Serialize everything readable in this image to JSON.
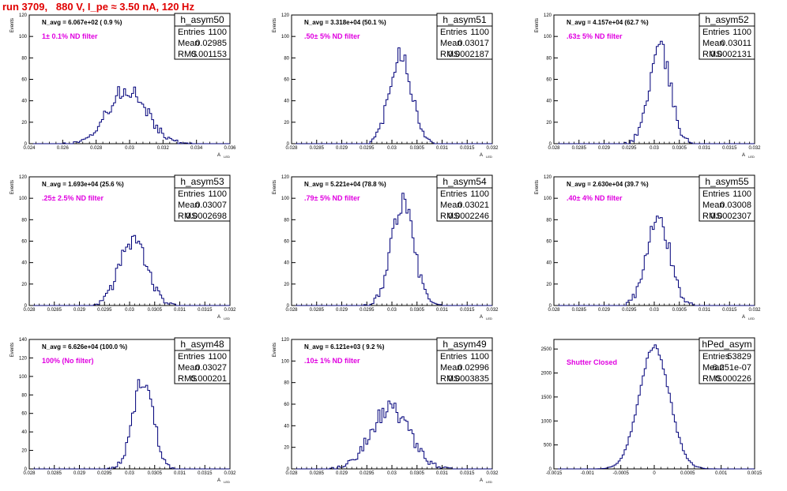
{
  "page": {
    "title": "run 3709,   880 V, I_pe ≈ 3.50 nA, 120 Hz"
  },
  "chart_data": [
    {
      "type": "bar",
      "name": "h_asym50",
      "navg_label": "N_avg = 6.067e+02 ( 0.9 %)",
      "filter_label": "1± 0.1% ND filter",
      "stats": {
        "entries_label": "Entries",
        "entries": "1100",
        "mean_label": "Mean",
        "mean": "0.02985",
        "rms_label": "RMS",
        "rms": "0.001153"
      },
      "ylabel": "Events",
      "xlabel": "A",
      "xlabel_sub": "LED",
      "xlim": [
        0.024,
        0.036
      ],
      "ylim": [
        0,
        120
      ],
      "xticks": [
        0.024,
        0.026,
        0.028,
        0.03,
        0.032,
        0.034,
        0.036
      ],
      "xtick_labels": [
        "0.024",
        "0.026",
        "0.028",
        "0.03",
        "0.032",
        "0.034",
        "0.036"
      ],
      "yticks": [
        0,
        20,
        40,
        60,
        80,
        100,
        120
      ],
      "ytick_labels": [
        "0",
        "20",
        "40",
        "60",
        "80",
        "100",
        "120"
      ],
      "dist": {
        "mean": 0.02985,
        "sigma": 0.001153,
        "peak": 52
      }
    },
    {
      "type": "bar",
      "name": "h_asym51",
      "navg_label": "N_avg = 3.318e+04 (50.1 %)",
      "filter_label": ".50± 5% ND filter",
      "stats": {
        "entries_label": "Entries",
        "entries": "1100",
        "mean_label": "Mean",
        "mean": "0.03017",
        "rms_label": "RMS",
        "rms": "0.0002187"
      },
      "ylabel": "Events",
      "xlabel": "A",
      "xlabel_sub": "LED",
      "xlim": [
        0.028,
        0.032
      ],
      "ylim": [
        0,
        120
      ],
      "xticks": [
        0.028,
        0.0285,
        0.029,
        0.0295,
        0.03,
        0.0305,
        0.031,
        0.0315,
        0.032
      ],
      "xtick_labels": [
        "0.028",
        "0.0285",
        "0.029",
        "0.0295",
        "0.03",
        "0.0305",
        "0.031",
        "0.0315",
        "0.032"
      ],
      "yticks": [
        0,
        20,
        40,
        60,
        80,
        100,
        120
      ],
      "ytick_labels": [
        "0",
        "20",
        "40",
        "60",
        "80",
        "100",
        "120"
      ],
      "dist": {
        "mean": 0.03017,
        "sigma": 0.0002187,
        "peak": 86
      }
    },
    {
      "type": "bar",
      "name": "h_asym52",
      "navg_label": "N_avg = 4.157e+04 (62.7 %)",
      "filter_label": ".63± 5% ND filter",
      "stats": {
        "entries_label": "Entries",
        "entries": "1100",
        "mean_label": "Mean",
        "mean": "0.03011",
        "rms_label": "RMS",
        "rms": "0.0002131"
      },
      "ylabel": "Events",
      "xlabel": "A",
      "xlabel_sub": "LED",
      "xlim": [
        0.028,
        0.032
      ],
      "ylim": [
        0,
        120
      ],
      "xticks": [
        0.028,
        0.0285,
        0.029,
        0.0295,
        0.03,
        0.0305,
        0.031,
        0.0315,
        0.032
      ],
      "xtick_labels": [
        "0.028",
        "0.0285",
        "0.029",
        "0.0295",
        "0.03",
        "0.0305",
        "0.031",
        "0.0315",
        "0.032"
      ],
      "yticks": [
        0,
        20,
        40,
        60,
        80,
        100,
        120
      ],
      "ytick_labels": [
        "0",
        "20",
        "40",
        "60",
        "80",
        "100",
        "120"
      ],
      "dist": {
        "mean": 0.03011,
        "sigma": 0.0002131,
        "peak": 88
      }
    },
    {
      "type": "bar",
      "name": "h_asym53",
      "navg_label": "N_avg = 1.693e+04 (25.6 %)",
      "filter_label": ".25± 2.5% ND filter",
      "stats": {
        "entries_label": "Entries",
        "entries": "1100",
        "mean_label": "Mean",
        "mean": "0.03007",
        "rms_label": "RMS",
        "rms": "0.0002698"
      },
      "ylabel": "Events",
      "xlabel": "A",
      "xlabel_sub": "LED",
      "xlim": [
        0.028,
        0.032
      ],
      "ylim": [
        0,
        120
      ],
      "xticks": [
        0.028,
        0.0285,
        0.029,
        0.0295,
        0.03,
        0.0305,
        0.031,
        0.0315,
        0.032
      ],
      "xtick_labels": [
        "0.028",
        "0.0285",
        "0.029",
        "0.0295",
        "0.03",
        "0.0305",
        "0.031",
        "0.0315",
        "0.032"
      ],
      "yticks": [
        0,
        20,
        40,
        60,
        80,
        100,
        120
      ],
      "ytick_labels": [
        "0",
        "20",
        "40",
        "60",
        "80",
        "100",
        "120"
      ],
      "dist": {
        "mean": 0.03007,
        "sigma": 0.0002698,
        "peak": 62
      }
    },
    {
      "type": "bar",
      "name": "h_asym54",
      "navg_label": "N_avg = 5.221e+04 (78.8 %)",
      "filter_label": ".79± 5% ND filter",
      "stats": {
        "entries_label": "Entries",
        "entries": "1100",
        "mean_label": "Mean",
        "mean": "0.03021",
        "rms_label": "RMS",
        "rms": "0.0002246"
      },
      "ylabel": "Events",
      "xlabel": "A",
      "xlabel_sub": "LED",
      "xlim": [
        0.028,
        0.032
      ],
      "ylim": [
        0,
        120
      ],
      "xticks": [
        0.028,
        0.0285,
        0.029,
        0.0295,
        0.03,
        0.0305,
        0.031,
        0.0315,
        0.032
      ],
      "xtick_labels": [
        "0.028",
        "0.0285",
        "0.029",
        "0.0295",
        "0.03",
        "0.0305",
        "0.031",
        "0.0315",
        "0.032"
      ],
      "yticks": [
        0,
        20,
        40,
        60,
        80,
        100,
        120
      ],
      "ytick_labels": [
        "0",
        "20",
        "40",
        "60",
        "80",
        "100",
        "120"
      ],
      "dist": {
        "mean": 0.03021,
        "sigma": 0.0002246,
        "peak": 96
      }
    },
    {
      "type": "bar",
      "name": "h_asym55",
      "navg_label": "N_avg = 2.630e+04 (39.7 %)",
      "filter_label": ".40± 4% ND filter",
      "stats": {
        "entries_label": "Entries",
        "entries": "1100",
        "mean_label": "Mean",
        "mean": "0.03008",
        "rms_label": "RMS",
        "rms": "0.0002307"
      },
      "ylabel": "Events",
      "xlabel": "A",
      "xlabel_sub": "LED",
      "xlim": [
        0.028,
        0.032
      ],
      "ylim": [
        0,
        120
      ],
      "xticks": [
        0.028,
        0.0285,
        0.029,
        0.0295,
        0.03,
        0.0305,
        0.031,
        0.0315,
        0.032
      ],
      "xtick_labels": [
        "0.028",
        "0.0285",
        "0.029",
        "0.0295",
        "0.03",
        "0.0305",
        "0.031",
        "0.0315",
        "0.032"
      ],
      "yticks": [
        0,
        20,
        40,
        60,
        80,
        100,
        120
      ],
      "ytick_labels": [
        "0",
        "20",
        "40",
        "60",
        "80",
        "100",
        "120"
      ],
      "dist": {
        "mean": 0.03008,
        "sigma": 0.0002307,
        "peak": 80
      }
    },
    {
      "type": "bar",
      "name": "h_asym48",
      "navg_label": "N_avg = 6.626e+04 (100.0 %)",
      "filter_label": "100% (No filter)",
      "stats": {
        "entries_label": "Entries",
        "entries": "1100",
        "mean_label": "Mean",
        "mean": "0.03027",
        "rms_label": "RMS",
        "rms": "0.000201"
      },
      "ylabel": "Events",
      "xlabel": "A",
      "xlabel_sub": "LED",
      "xlim": [
        0.028,
        0.032
      ],
      "ylim": [
        0,
        140
      ],
      "xticks": [
        0.028,
        0.0285,
        0.029,
        0.0295,
        0.03,
        0.0305,
        0.031,
        0.0315,
        0.032
      ],
      "xtick_labels": [
        "0.028",
        "0.0285",
        "0.029",
        "0.0295",
        "0.03",
        "0.0305",
        "0.031",
        "0.0315",
        "0.032"
      ],
      "yticks": [
        0,
        20,
        40,
        60,
        80,
        100,
        120,
        140
      ],
      "ytick_labels": [
        "0",
        "20",
        "40",
        "60",
        "80",
        "100",
        "120",
        "140"
      ],
      "dist": {
        "mean": 0.03027,
        "sigma": 0.000201,
        "peak": 98
      }
    },
    {
      "type": "bar",
      "name": "h_asym49",
      "navg_label": "N_avg = 6.121e+03 ( 9.2 %)",
      "filter_label": ".10± 1% ND filter",
      "stats": {
        "entries_label": "Entries",
        "entries": "1100",
        "mean_label": "Mean",
        "mean": "0.02996",
        "rms_label": "RMS",
        "rms": "0.0003835"
      },
      "ylabel": "Events",
      "xlabel": "A",
      "xlabel_sub": "LED",
      "xlim": [
        0.028,
        0.032
      ],
      "ylim": [
        0,
        120
      ],
      "xticks": [
        0.028,
        0.0285,
        0.029,
        0.0295,
        0.03,
        0.0305,
        0.031,
        0.0315,
        0.032
      ],
      "xtick_labels": [
        "0.028",
        "0.0285",
        "0.029",
        "0.0295",
        "0.03",
        "0.0305",
        "0.031",
        "0.0315",
        "0.032"
      ],
      "yticks": [
        0,
        20,
        40,
        60,
        80,
        100,
        120
      ],
      "ytick_labels": [
        "0",
        "20",
        "40",
        "60",
        "80",
        "100",
        "120"
      ],
      "dist": {
        "mean": 0.02996,
        "sigma": 0.0003835,
        "peak": 56
      }
    },
    {
      "type": "bar",
      "name": "hPed_asym",
      "navg_label": "",
      "filter_label": "Shutter Closed",
      "stats": {
        "entries_label": "Entries",
        "entries": "53829",
        "mean_label": "Mean",
        "mean": "-6.251e-07",
        "rms_label": "RMS",
        "rms": "0.000226"
      },
      "ylabel": "",
      "xlabel": "",
      "xlabel_sub": "",
      "xlim": [
        -0.0015,
        0.0015
      ],
      "ylim": [
        0,
        2700
      ],
      "xticks": [
        -0.0015,
        -0.001,
        -0.0005,
        0,
        0.0005,
        0.001,
        0.0015
      ],
      "xtick_labels": [
        "-0.0015",
        "-0.001",
        "-0.0005",
        "0",
        "0.0005",
        "0.001",
        "0.0015"
      ],
      "yticks": [
        0,
        500,
        1000,
        1500,
        2000,
        2500
      ],
      "ytick_labels": [
        "0",
        "500",
        "1000",
        "1500",
        "2000",
        "2500"
      ],
      "dist": {
        "mean": -6.251e-07,
        "sigma": 0.000226,
        "peak": 2550
      }
    }
  ],
  "colors": {
    "histogram": "#00007a",
    "label": "#e000e0",
    "title": "#e00000",
    "axis": "#000000"
  }
}
